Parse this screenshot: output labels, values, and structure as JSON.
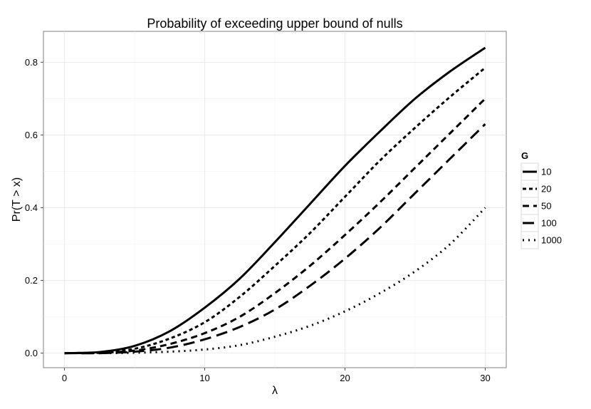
{
  "chart_data": {
    "type": "line",
    "title": "Probability of exceeding upper bound of nulls",
    "xlabel": "λ",
    "ylabel": "Pr(T > x)",
    "xlim": [
      -1.5,
      31.5
    ],
    "ylim": [
      -0.04,
      0.885
    ],
    "xticks": [
      0,
      10,
      20,
      30
    ],
    "xtick_labels": [
      "0",
      "10",
      "20",
      "30"
    ],
    "yticks": [
      0.0,
      0.2,
      0.4,
      0.6,
      0.8
    ],
    "ytick_labels": [
      "0.0",
      "0.2",
      "0.4",
      "0.6",
      "0.8"
    ],
    "grid": true,
    "legend_title": "G",
    "legend_position": "right",
    "x": [
      0,
      2.5,
      5,
      7.5,
      10,
      12.5,
      15,
      17.5,
      20,
      22.5,
      25,
      27.5,
      30
    ],
    "series": [
      {
        "name": "10",
        "dash": "solid",
        "values": [
          0.0,
          0.003,
          0.02,
          0.06,
          0.125,
          0.205,
          0.305,
          0.41,
          0.515,
          0.61,
          0.7,
          0.775,
          0.84
        ]
      },
      {
        "name": "20",
        "dash": "dotted-dense",
        "values": [
          0.0,
          0.002,
          0.012,
          0.04,
          0.085,
          0.155,
          0.24,
          0.33,
          0.43,
          0.53,
          0.62,
          0.705,
          0.785
        ]
      },
      {
        "name": "50",
        "dash": "dashed",
        "values": [
          0.0,
          0.001,
          0.007,
          0.025,
          0.055,
          0.1,
          0.165,
          0.24,
          0.325,
          0.415,
          0.51,
          0.605,
          0.7
        ]
      },
      {
        "name": "100",
        "dash": "long-dashed",
        "values": [
          0.0,
          0.0,
          0.004,
          0.015,
          0.038,
          0.072,
          0.12,
          0.185,
          0.26,
          0.345,
          0.44,
          0.535,
          0.63
        ]
      },
      {
        "name": "1000",
        "dash": "dotted",
        "values": [
          0.0,
          0.0,
          0.001,
          0.004,
          0.01,
          0.022,
          0.045,
          0.075,
          0.115,
          0.165,
          0.225,
          0.3,
          0.4
        ]
      }
    ]
  }
}
